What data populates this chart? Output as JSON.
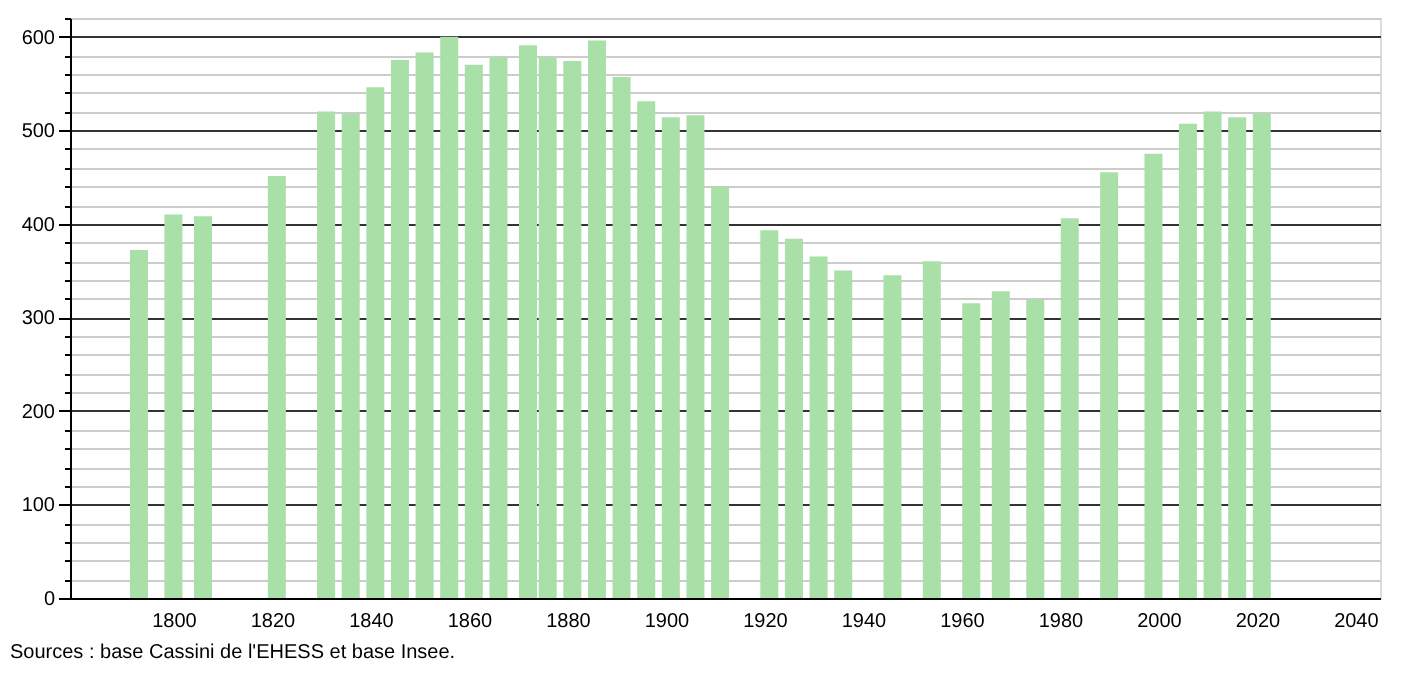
{
  "chart_data": {
    "type": "bar",
    "x": [
      1793,
      1800,
      1806,
      1821,
      1831,
      1836,
      1841,
      1846,
      1851,
      1856,
      1861,
      1866,
      1872,
      1876,
      1881,
      1886,
      1891,
      1896,
      1901,
      1906,
      1911,
      1921,
      1926,
      1931,
      1936,
      1946,
      1954,
      1962,
      1968,
      1975,
      1982,
      1990,
      1999,
      2006,
      2011,
      2016,
      2021
    ],
    "values": [
      372,
      410,
      408,
      451,
      520,
      518,
      546,
      575,
      583,
      600,
      570,
      578,
      591,
      578,
      574,
      596,
      557,
      531,
      514,
      516,
      440,
      393,
      384,
      365,
      350,
      345,
      360,
      315,
      328,
      319,
      406,
      455,
      475,
      507,
      520,
      514,
      518
    ],
    "color": "#a8e0a8",
    "xlim": [
      1779,
      2045
    ],
    "xticks": [
      1800,
      1820,
      1840,
      1860,
      1880,
      1900,
      1920,
      1940,
      1960,
      1980,
      2000,
      2020,
      2040
    ],
    "ylim": [
      0,
      620
    ],
    "yticks": [
      0,
      {
        "value": 20,
        "label": null
      },
      {
        "value": 40,
        "label": null
      },
      {
        "value": 60,
        "label": null
      },
      {
        "value": 80,
        "label": null
      },
      100,
      {
        "value": 120,
        "label": null
      },
      {
        "value": 140,
        "label": null
      },
      {
        "value": 160,
        "label": null
      },
      {
        "value": 180,
        "label": null
      },
      200,
      {
        "value": 220,
        "label": null
      },
      {
        "value": 240,
        "label": null
      },
      {
        "value": 260,
        "label": null
      },
      {
        "value": 280,
        "label": null
      },
      300,
      {
        "value": 320,
        "label": null
      },
      {
        "value": 340,
        "label": null
      },
      {
        "value": 360,
        "label": null
      },
      {
        "value": 380,
        "label": null
      },
      400,
      {
        "value": 420,
        "label": null
      },
      {
        "value": 440,
        "label": null
      },
      {
        "value": 460,
        "label": null
      },
      {
        "value": 480,
        "label": null
      },
      500,
      {
        "value": 520,
        "label": null
      },
      {
        "value": 540,
        "label": null
      },
      {
        "value": 560,
        "label": null
      },
      {
        "value": 580,
        "label": null
      },
      600,
      {
        "value": 620,
        "label": null
      }
    ],
    "grid": "y",
    "annotations": [
      "Sources : base Cassini de l'EHESS et base Insee."
    ]
  }
}
